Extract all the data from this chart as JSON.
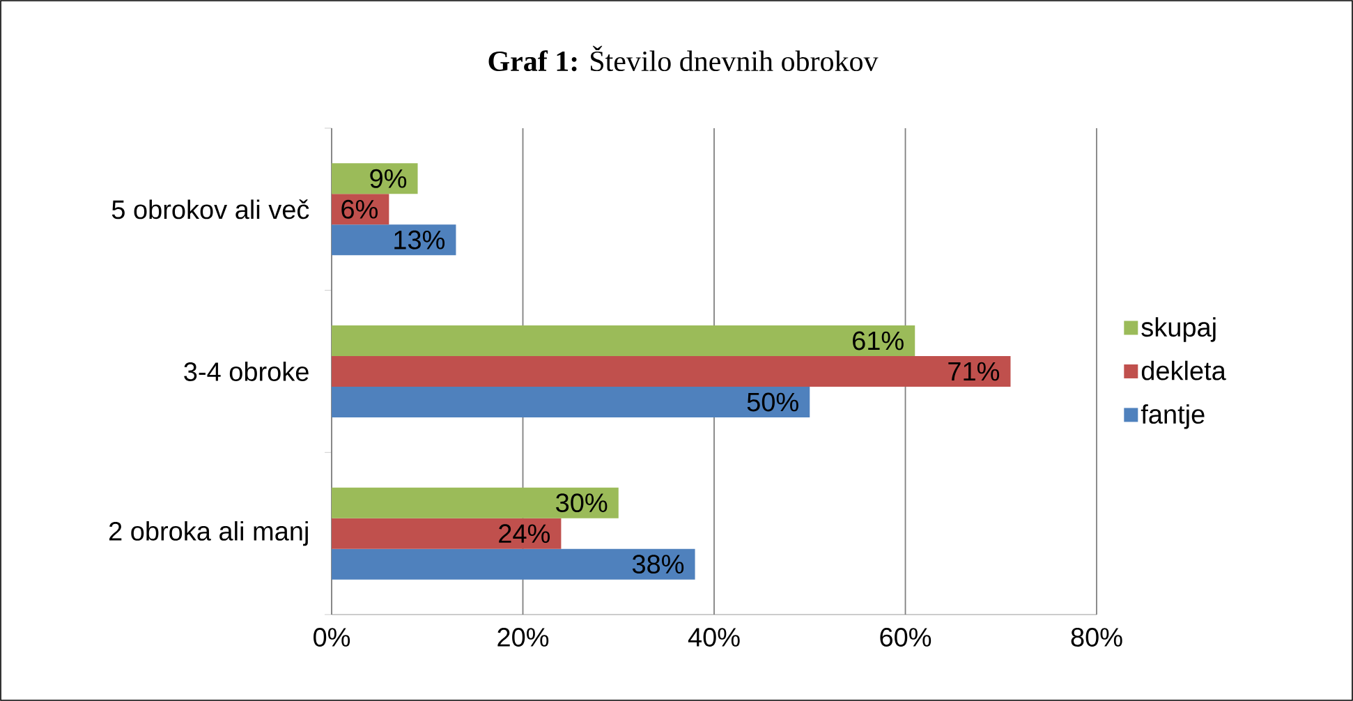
{
  "chart_data": {
    "type": "bar",
    "orientation": "horizontal",
    "title": "**Graf 1:** Število dnevnih obrokov",
    "categories": [
      "5 obrokov ali več",
      "3-4 obroke",
      "2 obroka ali manj"
    ],
    "series": [
      {
        "name": "skupaj",
        "color": "#9bbb59",
        "values": [
          9,
          61,
          30
        ],
        "value_labels": [
          "9%",
          "61%",
          "30%"
        ]
      },
      {
        "name": "dekleta",
        "color": "#c0504d",
        "values": [
          6,
          71,
          24
        ],
        "value_labels": [
          "6%",
          "71%",
          "24%"
        ]
      },
      {
        "name": "fantje",
        "color": "#4f81bd",
        "values": [
          13,
          50,
          38
        ],
        "value_labels": [
          "13%",
          "50%",
          "38%"
        ]
      }
    ],
    "xlim": [
      0,
      80
    ],
    "xticks": [
      {
        "value": 0,
        "label": "0%"
      },
      {
        "value": 20,
        "label": "20%"
      },
      {
        "value": 40,
        "label": "40%"
      },
      {
        "value": 60,
        "label": "60%"
      },
      {
        "value": 80,
        "label": "80%"
      }
    ],
    "grid": "x",
    "legend": "right"
  }
}
